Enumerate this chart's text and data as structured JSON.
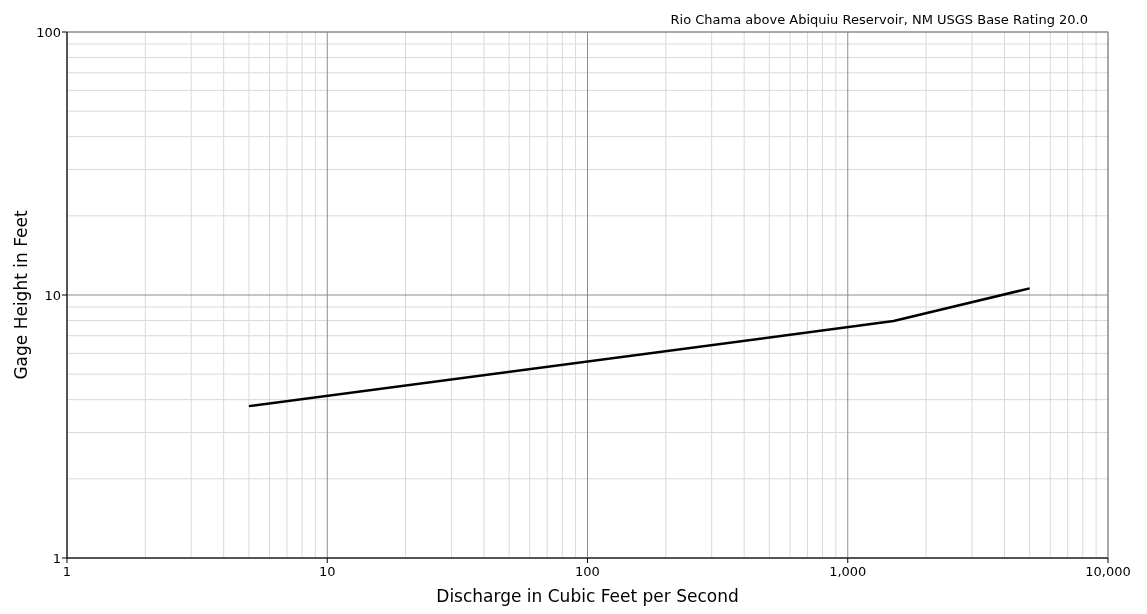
{
  "chart_data": {
    "type": "line",
    "title": "Rio Chama above Abiquiu Reservoir, NM USGS Base Rating 20.0",
    "xlabel": "Discharge in Cubic Feet per Second",
    "ylabel": "Gage Height in Feet",
    "log": "xy",
    "grid": true,
    "xlim": [
      1,
      10000
    ],
    "ylim": [
      1,
      100
    ],
    "xticks": [
      1,
      10,
      100,
      {
        "value": 1000,
        "label": "1,000"
      },
      {
        "value": 10000,
        "label": "10,000"
      }
    ],
    "yticks": [
      1,
      10,
      100
    ],
    "series": [
      {
        "color": "#000000",
        "x": [
          5,
          1500,
          5000
        ],
        "values": [
          3.78,
          7.96,
          10.6
        ]
      }
    ]
  }
}
